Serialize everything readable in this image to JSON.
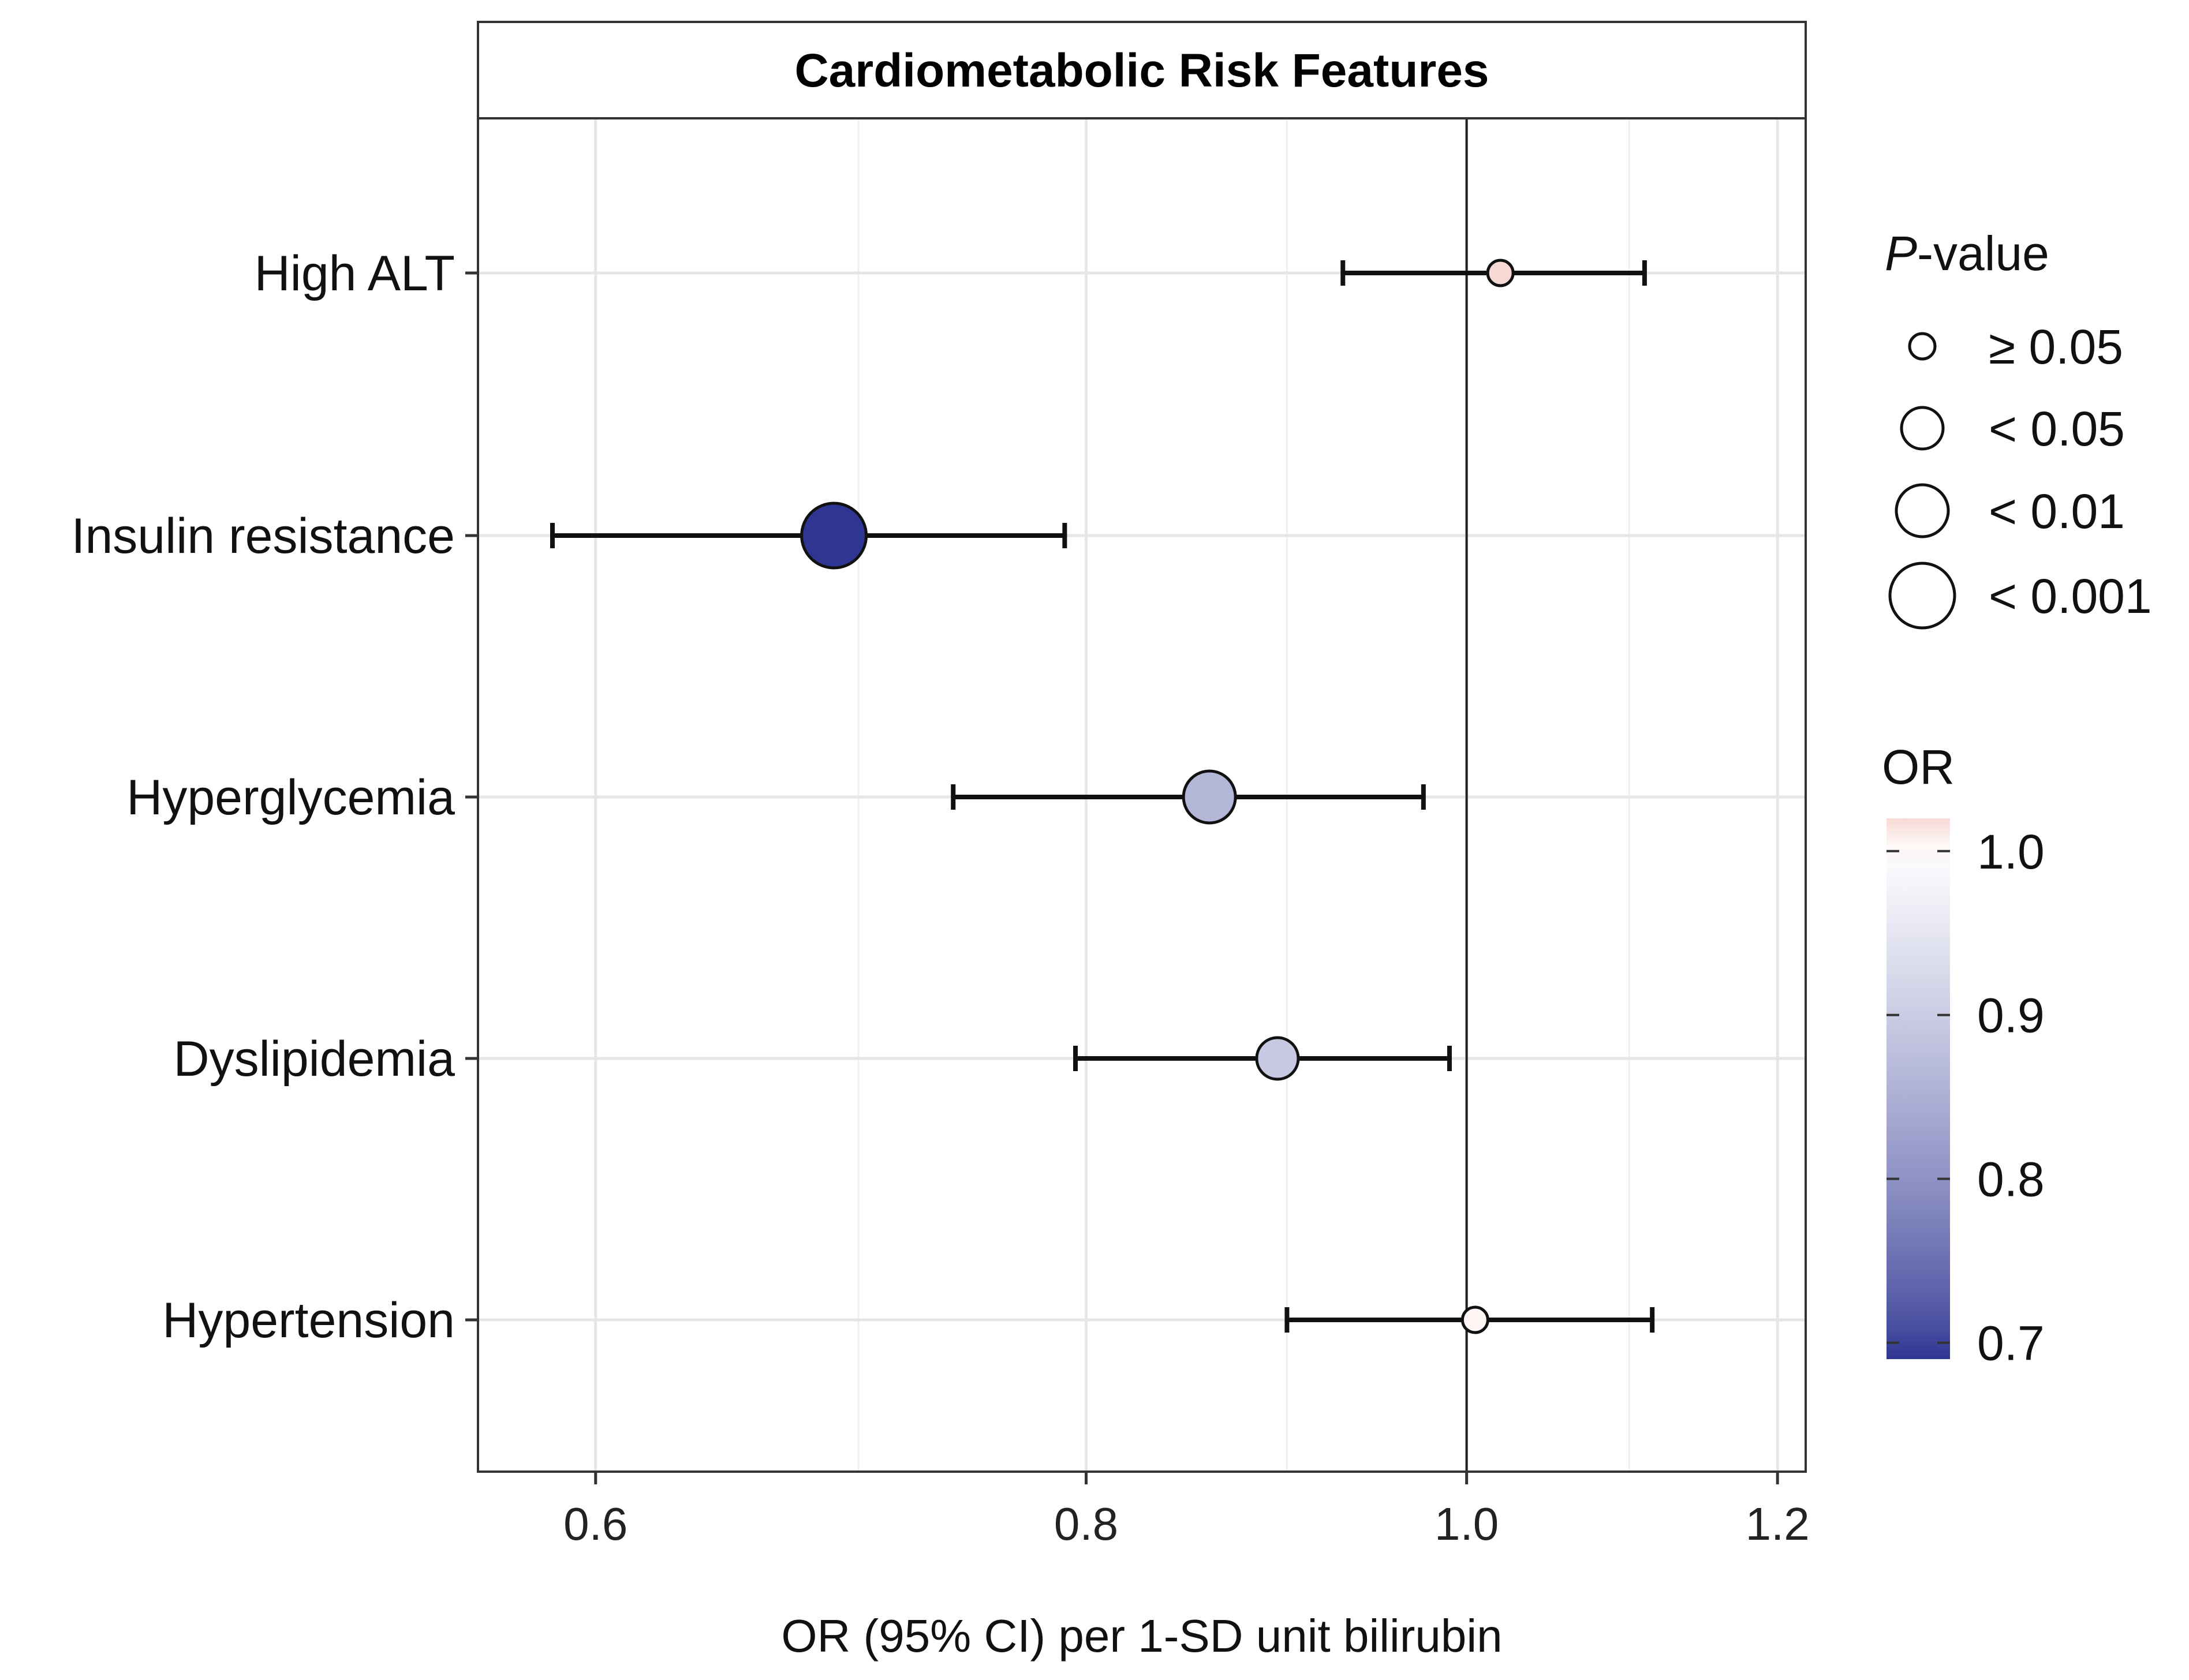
{
  "chart_data": {
    "type": "scatter",
    "subtype": "forest-plot",
    "title": "Cardiometabolic Risk Features",
    "xlabel": "OR (95% CI) per 1-SD unit bilirubin",
    "ylabel": "",
    "xlim": [
      0.56,
      1.22
    ],
    "xscale": "log",
    "xticks": [
      0.6,
      0.8,
      1.0,
      1.2
    ],
    "xtick_labels": [
      "0.6",
      "0.8",
      "1.0",
      "1.2"
    ],
    "minor_gridlines": [
      0.7,
      0.9,
      1.1
    ],
    "reference_line": 1.0,
    "grid": true,
    "categories": [
      "High ALT",
      "Insulin resistance",
      "Hyperglycemia",
      "Dyslipidemia",
      "Hypertension"
    ],
    "series": [
      {
        "name": "OR",
        "points": [
          {
            "label": "High ALT",
            "or": 1.02,
            "ci_low": 0.93,
            "ci_high": 1.11,
            "p_category": "≥ 0.05"
          },
          {
            "label": "Insulin resistance",
            "or": 0.69,
            "ci_low": 0.585,
            "ci_high": 0.79,
            "p_category": "< 0.001"
          },
          {
            "label": "Hyperglycemia",
            "or": 0.86,
            "ci_low": 0.74,
            "ci_high": 0.975,
            "p_category": "< 0.01"
          },
          {
            "label": "Dyslipidemia",
            "or": 0.895,
            "ci_low": 0.795,
            "ci_high": 0.99,
            "p_category": "< 0.05"
          },
          {
            "label": "Hypertension",
            "or": 1.005,
            "ci_low": 0.9,
            "ci_high": 1.115,
            "p_category": "≥ 0.05"
          }
        ]
      }
    ],
    "legend": {
      "size": {
        "title_italic": "P",
        "title_rest": "-value",
        "entries": [
          "≥ 0.05",
          "< 0.05",
          "< 0.01",
          "< 0.001"
        ]
      },
      "color": {
        "title": "OR",
        "range": [
          0.69,
          1.02
        ],
        "ticks": [
          1.0,
          0.9,
          0.8,
          0.7
        ],
        "tick_labels": [
          "1.0",
          "0.9",
          "0.8",
          "0.7"
        ],
        "low_color": "#2e3592",
        "mid_color": "#ffffff",
        "high_color": "#f7d9d4"
      },
      "position": "right"
    }
  }
}
